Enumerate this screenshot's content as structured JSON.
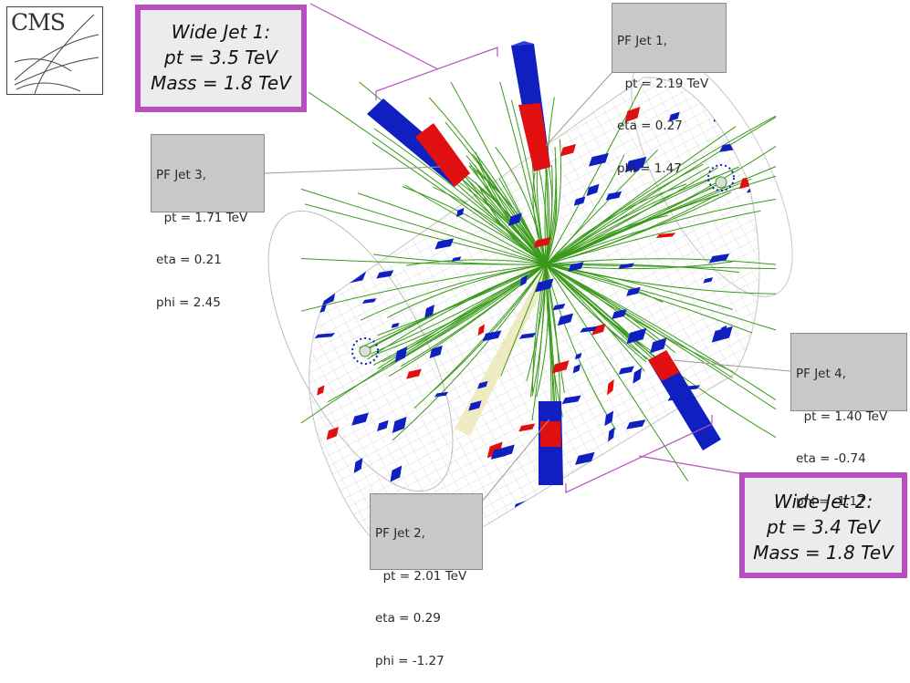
{
  "logo": {
    "text": "CMS"
  },
  "jets": [
    {
      "id": "jet1",
      "lines": [
        "PF Jet 1,",
        "  pt = 2.19 TeV",
        "eta = 0.27",
        "phi = 1.47"
      ]
    },
    {
      "id": "jet2",
      "lines": [
        "PF Jet 2,",
        "  pt = 2.01 TeV",
        "eta = 0.29",
        "phi = -1.27"
      ]
    },
    {
      "id": "jet3",
      "lines": [
        "PF Jet 3,",
        "  pt = 1.71 TeV",
        "eta = 0.21",
        "phi = 2.45"
      ]
    },
    {
      "id": "jet4",
      "lines": [
        "PF Jet 4,",
        "  pt = 1.40 TeV",
        "eta = -0.74",
        "phi = -1.17"
      ]
    }
  ],
  "wide_jets": [
    {
      "id": "wide1",
      "lines": [
        "Wide Jet 1:",
        "pt = 3.5 TeV",
        "Mass = 1.8 TeV"
      ]
    },
    {
      "id": "wide2",
      "lines": [
        "Wide Jet 2:",
        "pt = 3.4 TeV",
        "Mass = 1.8 TeV"
      ]
    }
  ],
  "colors": {
    "wide_border": "#b84fc0",
    "hcal": "#1020c0",
    "ecal": "#e01010",
    "track": "#3a9a1a",
    "detector_mesh": "#c9c9c9",
    "jet_cone": "#e9e6b0"
  }
}
